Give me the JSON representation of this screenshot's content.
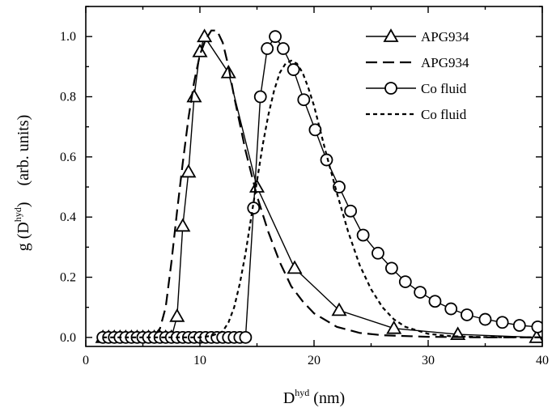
{
  "chart_data": {
    "type": "line",
    "xlabel": "D",
    "xlabel_sup": "hyd",
    "xlabel_unit": " (nm)",
    "ylabel": "g (D",
    "ylabel_sup": "hyd",
    "ylabel_unit": ")    (arb. units)",
    "xlim": [
      0,
      40
    ],
    "ylim": [
      -0.03,
      1.1
    ],
    "x_ticks": [
      0,
      10,
      20,
      30,
      40
    ],
    "y_ticks": [
      0.0,
      0.2,
      0.4,
      0.6,
      0.8,
      1.0
    ],
    "x_tick_labels": [
      "0",
      "10",
      "20",
      "30",
      "40"
    ],
    "y_tick_labels": [
      "0.0",
      "0.2",
      "0.4",
      "0.6",
      "0.8",
      "1.0"
    ],
    "grid": false,
    "legend_position": "top-right",
    "series": [
      {
        "name": "APG934",
        "style": "solid",
        "marker": "triangle",
        "color": "#000000",
        "x": [
          1.5,
          2.0,
          2.5,
          3.0,
          3.5,
          4.0,
          4.5,
          5.0,
          5.5,
          6.0,
          6.5,
          7.0,
          7.5,
          8.0,
          8.5,
          9.0,
          9.5,
          10.0,
          10.4,
          12.5,
          15.0,
          18.3,
          22.2,
          27.0,
          32.6,
          39.5
        ],
        "y": [
          0.0,
          0.0,
          0.0,
          0.0,
          0.0,
          0.0,
          0.0,
          0.0,
          0.0,
          0.0,
          0.0,
          0.0,
          0.0,
          0.07,
          0.37,
          0.55,
          0.8,
          0.95,
          1.0,
          0.88,
          0.5,
          0.23,
          0.09,
          0.03,
          0.01,
          0.0
        ]
      },
      {
        "name": "APG934",
        "style": "dashed",
        "marker": "none",
        "color": "#000000",
        "x": [
          1.5,
          5.0,
          6.0,
          6.5,
          7.0,
          7.5,
          8.0,
          8.5,
          9.0,
          9.5,
          10.0,
          10.5,
          11.0,
          11.5,
          12.0,
          12.5,
          13.0,
          14.0,
          15.0,
          16.0,
          17.0,
          18.0,
          19.0,
          20.0,
          22.0,
          24.0,
          26.0,
          30.0,
          35.0,
          40.0
        ],
        "y": [
          0.0,
          0.0,
          0.005,
          0.03,
          0.1,
          0.25,
          0.42,
          0.58,
          0.73,
          0.85,
          0.94,
          0.99,
          1.02,
          1.02,
          0.98,
          0.9,
          0.8,
          0.62,
          0.47,
          0.35,
          0.25,
          0.17,
          0.12,
          0.08,
          0.035,
          0.015,
          0.007,
          0.002,
          0.0,
          0.0
        ]
      },
      {
        "name": "Co fluid",
        "style": "solid",
        "marker": "circle",
        "color": "#000000",
        "x": [
          1.5,
          2.0,
          2.5,
          3.0,
          3.5,
          4.0,
          4.5,
          5.0,
          5.5,
          6.0,
          6.5,
          7.0,
          7.5,
          8.0,
          8.5,
          9.0,
          9.5,
          10.0,
          10.5,
          11.0,
          11.5,
          12.0,
          12.5,
          13.0,
          13.5,
          14.0,
          14.7,
          15.3,
          15.9,
          16.6,
          17.3,
          18.2,
          19.1,
          20.1,
          21.1,
          22.2,
          23.2,
          24.3,
          25.6,
          26.8,
          28.0,
          29.3,
          30.6,
          32.0,
          33.4,
          35.0,
          36.5,
          38.0,
          39.6
        ],
        "y": [
          0.0,
          0.0,
          0.0,
          0.0,
          0.0,
          0.0,
          0.0,
          0.0,
          0.0,
          0.0,
          0.0,
          0.0,
          0.0,
          0.0,
          0.0,
          0.0,
          0.0,
          0.0,
          0.0,
          0.0,
          0.0,
          0.0,
          0.0,
          0.0,
          0.0,
          0.0,
          0.43,
          0.8,
          0.96,
          1.0,
          0.96,
          0.89,
          0.79,
          0.69,
          0.59,
          0.5,
          0.42,
          0.34,
          0.28,
          0.23,
          0.185,
          0.15,
          0.12,
          0.095,
          0.075,
          0.06,
          0.05,
          0.04,
          0.035
        ]
      },
      {
        "name": "Co fluid",
        "style": "dotted",
        "marker": "none",
        "color": "#000000",
        "x": [
          1.5,
          10.0,
          11.0,
          12.0,
          12.5,
          13.0,
          13.5,
          14.0,
          14.5,
          15.0,
          15.5,
          16.0,
          16.5,
          17.0,
          17.5,
          18.0,
          18.5,
          19.0,
          19.5,
          20.0,
          21.0,
          22.0,
          23.0,
          24.0,
          25.0,
          26.0,
          27.0,
          28.0,
          30.0,
          32.0,
          35.0,
          40.0
        ],
        "y": [
          0.0,
          0.0,
          0.005,
          0.02,
          0.05,
          0.1,
          0.18,
          0.28,
          0.4,
          0.52,
          0.64,
          0.74,
          0.82,
          0.88,
          0.91,
          0.92,
          0.91,
          0.88,
          0.83,
          0.77,
          0.62,
          0.48,
          0.35,
          0.24,
          0.16,
          0.1,
          0.06,
          0.035,
          0.012,
          0.004,
          0.001,
          0.0
        ]
      }
    ]
  }
}
